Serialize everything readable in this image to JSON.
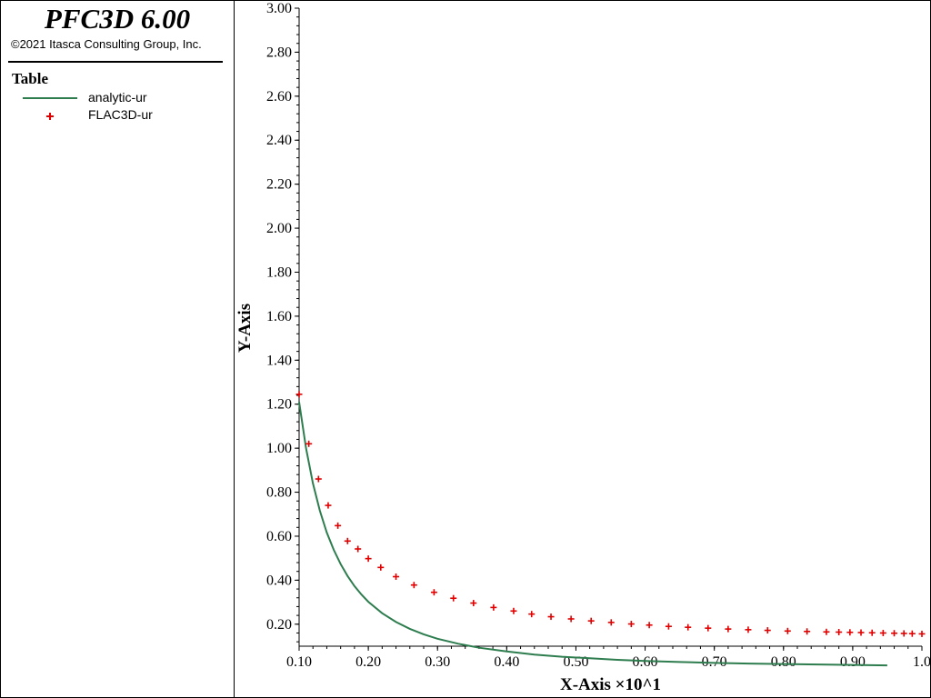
{
  "header": {
    "app_title": "PFC3D 6.00",
    "copyright": "©2021 Itasca Consulting Group, Inc."
  },
  "legend": {
    "heading": "Table",
    "items": [
      {
        "label": "analytic-ur",
        "symbol": "line",
        "color": "#2e7d4f"
      },
      {
        "label": "FLAC3D-ur",
        "symbol": "plus",
        "color": "#e00000"
      }
    ]
  },
  "chart_data": {
    "type": "line",
    "title": "",
    "xlabel": "X-Axis ×10^1",
    "ylabel": "Y-Axis",
    "xlim": [
      0.1,
      1.0
    ],
    "ylim": [
      0.1,
      3.0
    ],
    "grid": false,
    "legend_position": "left panel",
    "x_ticks": [
      "0.10",
      "0.20",
      "0.30",
      "0.40",
      "0.50",
      "0.60",
      "0.70",
      "0.80",
      "0.90",
      "1.0"
    ],
    "y_ticks": [
      "0.20",
      "0.40",
      "0.60",
      "0.80",
      "1.00",
      "1.20",
      "1.40",
      "1.60",
      "1.80",
      "2.00",
      "2.20",
      "2.40",
      "2.60",
      "2.80",
      "3.00"
    ],
    "series": [
      {
        "name": "analytic-ur",
        "style": "line",
        "color": "#2e7d4f",
        "x": [
          0.1,
          0.11,
          0.12,
          0.13,
          0.14,
          0.15,
          0.16,
          0.17,
          0.18,
          0.19,
          0.2,
          0.22,
          0.24,
          0.26,
          0.28,
          0.3,
          0.33,
          0.36,
          0.4,
          0.44,
          0.48,
          0.52,
          0.56,
          0.6,
          0.65,
          0.7,
          0.75,
          0.8,
          0.85,
          0.9,
          0.95
        ],
        "y": [
          1.21,
          1.0,
          0.84,
          0.716,
          0.617,
          0.538,
          0.473,
          0.419,
          0.373,
          0.335,
          0.302,
          0.25,
          0.21,
          0.179,
          0.154,
          0.134,
          0.111,
          0.093,
          0.076,
          0.062,
          0.052,
          0.045,
          0.038,
          0.033,
          0.028,
          0.024,
          0.021,
          0.019,
          0.017,
          0.015,
          0.013
        ]
      },
      {
        "name": "FLAC3D-ur",
        "style": "plus",
        "color": "#e00000",
        "x": [
          0.1,
          0.114,
          0.128,
          0.142,
          0.156,
          0.17,
          0.185,
          0.2,
          0.218,
          0.24,
          0.266,
          0.295,
          0.323,
          0.352,
          0.381,
          0.41,
          0.436,
          0.464,
          0.493,
          0.522,
          0.551,
          0.58,
          0.606,
          0.634,
          0.662,
          0.691,
          0.72,
          0.749,
          0.777,
          0.806,
          0.834,
          0.862,
          0.88,
          0.896,
          0.912,
          0.928,
          0.944,
          0.96,
          0.974,
          0.986,
          1.0
        ],
        "y": [
          1.245,
          1.02,
          0.86,
          0.74,
          0.648,
          0.578,
          0.542,
          0.498,
          0.458,
          0.416,
          0.378,
          0.345,
          0.318,
          0.296,
          0.276,
          0.26,
          0.246,
          0.234,
          0.224,
          0.215,
          0.208,
          0.201,
          0.196,
          0.19,
          0.186,
          0.182,
          0.178,
          0.175,
          0.172,
          0.169,
          0.167,
          0.165,
          0.164,
          0.163,
          0.162,
          0.161,
          0.16,
          0.159,
          0.158,
          0.157,
          0.156
        ]
      }
    ]
  }
}
